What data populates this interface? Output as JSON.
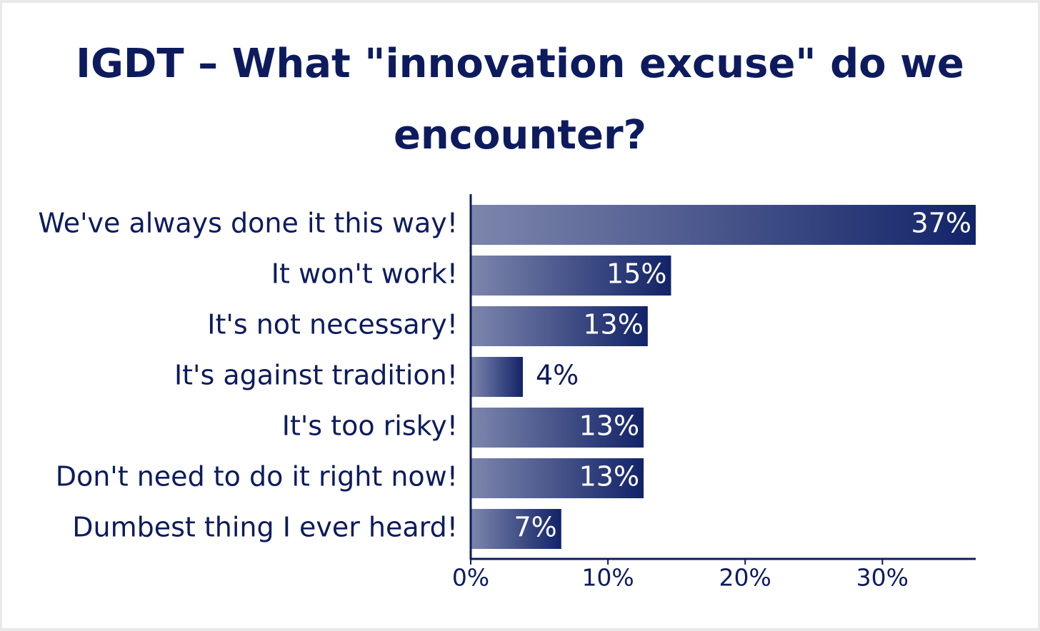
{
  "chart_data": {
    "type": "bar",
    "orientation": "horizontal",
    "title": "IGDT – What \"innovation excuse\" do we encounter?",
    "categories": [
      "We've always done it this way!",
      "It won't work!",
      "It's not necessary!",
      "It's against tradition!",
      "It's too risky!",
      "Don't need to do it right now!",
      "Dumbest thing I ever heard!"
    ],
    "values": [
      36.8,
      14.6,
      12.9,
      3.8,
      12.6,
      12.6,
      6.6
    ],
    "value_labels": [
      "37%",
      "15%",
      "13%",
      "4%",
      "13%",
      "13%",
      "7%"
    ],
    "color": "#122368",
    "xlim": [
      0,
      36.8
    ],
    "xticks": [
      {
        "value": 0,
        "label": "0%"
      },
      {
        "value": 10,
        "label": "10%"
      },
      {
        "value": 20,
        "label": "20%"
      },
      {
        "value": 30,
        "label": "30%"
      }
    ],
    "grid": false
  }
}
